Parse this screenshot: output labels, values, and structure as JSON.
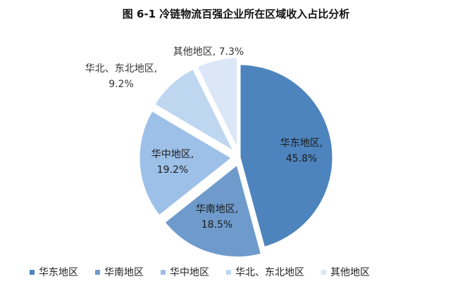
{
  "chart_data": {
    "type": "pie",
    "title": "图 6-1  冷链物流百强企业所在区域收入占比分析",
    "categories": [
      "华东地区",
      "华南地区",
      "华中地区",
      "华北、东北地区",
      "其他地区"
    ],
    "values": [
      45.8,
      18.5,
      19.2,
      9.2,
      7.3
    ],
    "value_labels": [
      "45.8%",
      "18.5%",
      "19.2%",
      "9.2%",
      "7.3%"
    ],
    "colors": [
      "#4e84bd",
      "#6f9bcc",
      "#9dc0e8",
      "#bed6f0",
      "#dbe7f6"
    ],
    "legend_position": "bottom"
  }
}
